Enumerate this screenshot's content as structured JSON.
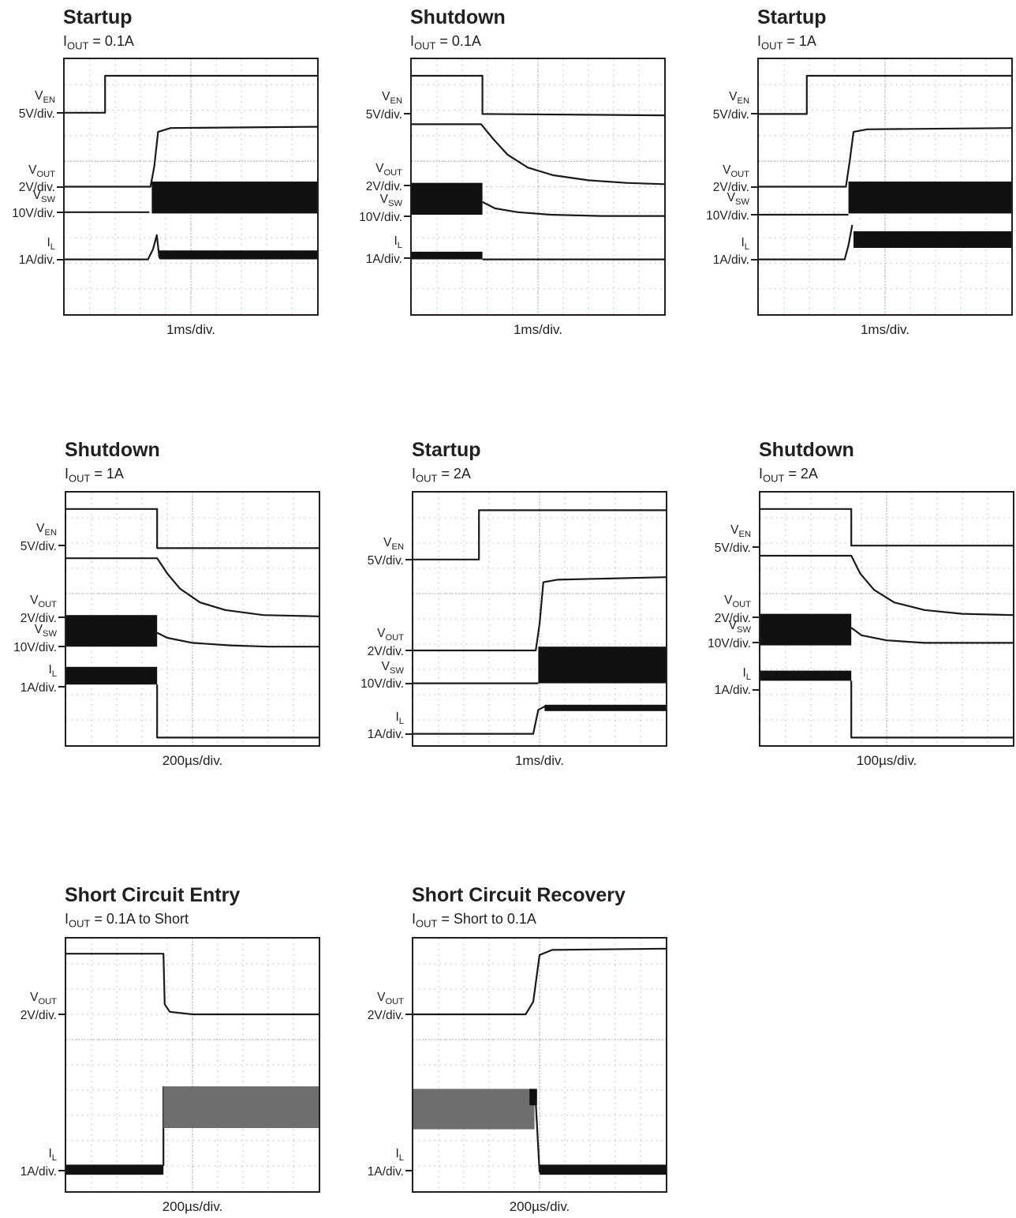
{
  "chart_data": [
    {
      "type": "line",
      "title": "Startup",
      "subtitle": {
        "sym": "I",
        "sub": "OUT",
        "rest": " = 0.1A"
      },
      "timebase": "1ms/div.",
      "channels": [
        {
          "sym": "V",
          "sub": "EN",
          "scale": "5V/div.",
          "level_div": 2.1
        },
        {
          "sym": "V",
          "sub": "OUT",
          "scale": "2V/div.",
          "level_div": 5.0
        },
        {
          "sym": "V",
          "sub": "SW",
          "scale": "10V/div.",
          "level_div": 6.0
        },
        {
          "sym": "I",
          "sub": "L",
          "scale": "1A/div.",
          "level_div": 7.85
        }
      ],
      "series": [
        {
          "kind": "line",
          "pts": [
            [
              0,
              2.1
            ],
            [
              1.6,
              2.1
            ],
            [
              1.6,
              0.65
            ],
            [
              10,
              0.65
            ]
          ]
        },
        {
          "kind": "line",
          "pts": [
            [
              0,
              5.0
            ],
            [
              3.4,
              5.0
            ],
            [
              3.55,
              4.2
            ],
            [
              3.7,
              2.85
            ],
            [
              4.2,
              2.7
            ],
            [
              10,
              2.65
            ]
          ]
        },
        {
          "kind": "line",
          "pts": [
            [
              0,
              6.0
            ],
            [
              3.35,
              6.0
            ]
          ]
        },
        {
          "kind": "band",
          "x0": 3.45,
          "x1": 10,
          "top": 4.8,
          "bot": 6.05
        },
        {
          "kind": "line",
          "pts": [
            [
              0,
              7.85
            ],
            [
              3.3,
              7.85
            ],
            [
              3.5,
              7.45
            ],
            [
              3.65,
              6.9
            ],
            [
              3.75,
              7.8
            ]
          ]
        },
        {
          "kind": "band",
          "x0": 3.75,
          "x1": 10,
          "top": 7.5,
          "bot": 7.85
        }
      ]
    },
    {
      "type": "line",
      "title": "Shutdown",
      "subtitle": {
        "sym": "I",
        "sub": "OUT",
        "rest": " = 0.1A"
      },
      "timebase": "1ms/div.",
      "channels": [
        {
          "sym": "V",
          "sub": "EN",
          "scale": "5V/div.",
          "level_div": 2.15
        },
        {
          "sym": "V",
          "sub": "OUT",
          "scale": "2V/div.",
          "level_div": 4.95
        },
        {
          "sym": "V",
          "sub": "SW",
          "scale": "10V/div.",
          "level_div": 6.15
        },
        {
          "sym": "I",
          "sub": "L",
          "scale": "1A/div.",
          "level_div": 7.8
        }
      ],
      "series": [
        {
          "kind": "line",
          "pts": [
            [
              0,
              0.65
            ],
            [
              2.8,
              0.65
            ],
            [
              2.8,
              2.15
            ],
            [
              10,
              2.2
            ]
          ]
        },
        {
          "kind": "line",
          "pts": [
            [
              0,
              2.55
            ],
            [
              2.75,
              2.55
            ],
            [
              3.2,
              3.1
            ],
            [
              3.8,
              3.75
            ],
            [
              4.6,
              4.25
            ],
            [
              5.6,
              4.55
            ],
            [
              7,
              4.75
            ],
            [
              8.5,
              4.85
            ],
            [
              10,
              4.9
            ]
          ]
        },
        {
          "kind": "band",
          "x0": 0,
          "x1": 2.8,
          "top": 4.85,
          "bot": 6.1
        },
        {
          "kind": "line",
          "pts": [
            [
              2.8,
              5.6
            ],
            [
              3.3,
              5.85
            ],
            [
              4.2,
              6.0
            ],
            [
              5.5,
              6.1
            ],
            [
              7.5,
              6.15
            ],
            [
              10,
              6.15
            ]
          ]
        },
        {
          "kind": "band",
          "x0": 0,
          "x1": 2.8,
          "top": 7.55,
          "bot": 7.85
        },
        {
          "kind": "line",
          "pts": [
            [
              2.8,
              7.85
            ],
            [
              10,
              7.85
            ]
          ]
        }
      ]
    },
    {
      "type": "line",
      "title": "Startup",
      "subtitle": {
        "sym": "I",
        "sub": "OUT",
        "rest": " = 1A"
      },
      "timebase": "1ms/div.",
      "channels": [
        {
          "sym": "V",
          "sub": "EN",
          "scale": "5V/div.",
          "level_div": 2.15
        },
        {
          "sym": "V",
          "sub": "OUT",
          "scale": "2V/div.",
          "level_div": 5.0
        },
        {
          "sym": "V",
          "sub": "SW",
          "scale": "10V/div.",
          "level_div": 6.1
        },
        {
          "sym": "I",
          "sub": "L",
          "scale": "1A/div.",
          "level_div": 7.85
        }
      ],
      "series": [
        {
          "kind": "line",
          "pts": [
            [
              0,
              2.15
            ],
            [
              1.9,
              2.15
            ],
            [
              1.9,
              0.65
            ],
            [
              10,
              0.65
            ]
          ]
        },
        {
          "kind": "line",
          "pts": [
            [
              0,
              5.0
            ],
            [
              3.45,
              5.0
            ],
            [
              3.6,
              4.0
            ],
            [
              3.75,
              2.85
            ],
            [
              4.3,
              2.75
            ],
            [
              10,
              2.7
            ]
          ]
        },
        {
          "kind": "line",
          "pts": [
            [
              0,
              6.1
            ],
            [
              3.55,
              6.1
            ]
          ]
        },
        {
          "kind": "band",
          "x0": 3.55,
          "x1": 10,
          "top": 4.8,
          "bot": 6.05
        },
        {
          "kind": "line",
          "pts": [
            [
              0,
              7.85
            ],
            [
              3.4,
              7.85
            ],
            [
              3.55,
              7.3
            ],
            [
              3.7,
              6.5
            ]
          ]
        },
        {
          "kind": "band",
          "x0": 3.75,
          "x1": 10,
          "top": 6.75,
          "bot": 7.4
        }
      ]
    },
    {
      "type": "line",
      "title": "Shutdown",
      "subtitle": {
        "sym": "I",
        "sub": "OUT",
        "rest": " = 1A"
      },
      "timebase": "200µs/div.",
      "channels": [
        {
          "sym": "V",
          "sub": "EN",
          "scale": "5V/div.",
          "level_div": 2.1
        },
        {
          "sym": "V",
          "sub": "OUT",
          "scale": "2V/div.",
          "level_div": 4.95
        },
        {
          "sym": "V",
          "sub": "SW",
          "scale": "10V/div.",
          "level_div": 6.1
        },
        {
          "sym": "I",
          "sub": "L",
          "scale": "1A/div.",
          "level_div": 7.7
        }
      ],
      "series": [
        {
          "kind": "line",
          "pts": [
            [
              0,
              0.65
            ],
            [
              3.6,
              0.65
            ],
            [
              3.6,
              2.2
            ],
            [
              10,
              2.2
            ]
          ]
        },
        {
          "kind": "line",
          "pts": [
            [
              0,
              2.6
            ],
            [
              3.6,
              2.6
            ],
            [
              4.0,
              3.2
            ],
            [
              4.5,
              3.8
            ],
            [
              5.3,
              4.35
            ],
            [
              6.3,
              4.65
            ],
            [
              7.8,
              4.85
            ],
            [
              10,
              4.9
            ]
          ]
        },
        {
          "kind": "band",
          "x0": 0,
          "x1": 3.6,
          "top": 4.85,
          "bot": 6.1
        },
        {
          "kind": "line",
          "pts": [
            [
              3.6,
              5.55
            ],
            [
              4.0,
              5.75
            ],
            [
              5.0,
              5.95
            ],
            [
              6.5,
              6.05
            ],
            [
              8,
              6.1
            ],
            [
              10,
              6.1
            ]
          ]
        },
        {
          "kind": "band",
          "x0": 0,
          "x1": 3.6,
          "top": 6.9,
          "bot": 7.6
        },
        {
          "kind": "line",
          "pts": [
            [
              3.6,
              7.6
            ],
            [
              3.6,
              9.7
            ],
            [
              10,
              9.7
            ]
          ]
        }
      ]
    },
    {
      "type": "line",
      "title": "Startup",
      "subtitle": {
        "sym": "I",
        "sub": "OUT",
        "rest": " = 2A"
      },
      "timebase": "1ms/div.",
      "channels": [
        {
          "sym": "V",
          "sub": "EN",
          "scale": "5V/div.",
          "level_div": 2.65
        },
        {
          "sym": "V",
          "sub": "OUT",
          "scale": "2V/div.",
          "level_div": 6.25
        },
        {
          "sym": "V",
          "sub": "SW",
          "scale": "10V/div.",
          "level_div": 7.55
        },
        {
          "sym": "I",
          "sub": "L",
          "scale": "1A/div.",
          "level_div": 9.55
        }
      ],
      "series": [
        {
          "kind": "line",
          "pts": [
            [
              0,
              2.65
            ],
            [
              2.6,
              2.65
            ],
            [
              2.6,
              0.7
            ],
            [
              10,
              0.7
            ]
          ]
        },
        {
          "kind": "line",
          "pts": [
            [
              0,
              6.25
            ],
            [
              4.85,
              6.25
            ],
            [
              5.0,
              5.2
            ],
            [
              5.15,
              3.55
            ],
            [
              5.7,
              3.45
            ],
            [
              10,
              3.35
            ]
          ]
        },
        {
          "kind": "line",
          "pts": [
            [
              0,
              7.55
            ],
            [
              4.95,
              7.55
            ]
          ]
        },
        {
          "kind": "band",
          "x0": 4.95,
          "x1": 10,
          "top": 6.1,
          "bot": 7.55
        },
        {
          "kind": "line",
          "pts": [
            [
              0,
              9.55
            ],
            [
              4.75,
              9.55
            ],
            [
              4.95,
              8.6
            ],
            [
              5.25,
              8.45
            ]
          ]
        },
        {
          "kind": "band",
          "x0": 5.2,
          "x1": 10,
          "top": 8.4,
          "bot": 8.65
        }
      ]
    },
    {
      "type": "line",
      "title": "Shutdown",
      "subtitle": {
        "sym": "I",
        "sub": "OUT",
        "rest": " = 2A"
      },
      "timebase": "100µs/div.",
      "channels": [
        {
          "sym": "V",
          "sub": "EN",
          "scale": "5V/div.",
          "level_div": 2.15
        },
        {
          "sym": "V",
          "sub": "OUT",
          "scale": "2V/div.",
          "level_div": 4.95
        },
        {
          "sym": "V",
          "sub": "SW",
          "scale": "10V/div.",
          "level_div": 5.95
        },
        {
          "sym": "I",
          "sub": "L",
          "scale": "1A/div.",
          "level_div": 7.8
        }
      ],
      "series": [
        {
          "kind": "line",
          "pts": [
            [
              0,
              0.65
            ],
            [
              3.6,
              0.65
            ],
            [
              3.6,
              2.1
            ],
            [
              10,
              2.1
            ]
          ]
        },
        {
          "kind": "line",
          "pts": [
            [
              0,
              2.5
            ],
            [
              3.6,
              2.5
            ],
            [
              3.95,
              3.2
            ],
            [
              4.5,
              3.85
            ],
            [
              5.3,
              4.35
            ],
            [
              6.5,
              4.65
            ],
            [
              8,
              4.8
            ],
            [
              10,
              4.85
            ]
          ]
        },
        {
          "kind": "band",
          "x0": 0,
          "x1": 3.6,
          "top": 4.8,
          "bot": 6.05
        },
        {
          "kind": "line",
          "pts": [
            [
              3.6,
              5.35
            ],
            [
              4.0,
              5.65
            ],
            [
              5.0,
              5.85
            ],
            [
              6.5,
              5.95
            ],
            [
              10,
              5.95
            ]
          ]
        },
        {
          "kind": "band",
          "x0": 0,
          "x1": 3.6,
          "top": 7.05,
          "bot": 7.45
        },
        {
          "kind": "line",
          "pts": [
            [
              3.6,
              7.45
            ],
            [
              3.6,
              9.7
            ],
            [
              10,
              9.7
            ]
          ]
        }
      ]
    },
    {
      "type": "line",
      "title": "Short Circuit Entry",
      "subtitle": {
        "sym": "I",
        "sub": "OUT",
        "rest": " = 0.1A to Short"
      },
      "timebase": "200µs/div.",
      "channels": [
        {
          "sym": "V",
          "sub": "OUT",
          "scale": "2V/div.",
          "level_div": 3.0
        },
        {
          "sym": "I",
          "sub": "L",
          "scale": "1A/div.",
          "level_div": 9.2
        }
      ],
      "series": [
        {
          "kind": "line",
          "pts": [
            [
              0,
              0.6
            ],
            [
              3.85,
              0.6
            ],
            [
              3.9,
              2.6
            ],
            [
              4.1,
              2.9
            ],
            [
              5,
              3.0
            ],
            [
              10,
              3.0
            ]
          ]
        },
        {
          "kind": "band",
          "x0": 0,
          "x1": 3.85,
          "top": 8.95,
          "bot": 9.35
        },
        {
          "kind": "line",
          "pts": [
            [
              3.85,
              9.0
            ],
            [
              3.85,
              5.85
            ]
          ]
        },
        {
          "kind": "band",
          "x0": 3.85,
          "x1": 10,
          "top": 5.85,
          "bot": 7.5,
          "light": true
        }
      ]
    },
    {
      "type": "line",
      "title": "Short Circuit Recovery",
      "subtitle": {
        "sym": "I",
        "sub": "OUT",
        "rest": " = Short to 0.1A"
      },
      "timebase": "200µs/div.",
      "channels": [
        {
          "sym": "V",
          "sub": "OUT",
          "scale": "2V/div.",
          "level_div": 3.0
        },
        {
          "sym": "I",
          "sub": "L",
          "scale": "1A/div.",
          "level_div": 9.2
        }
      ],
      "series": [
        {
          "kind": "line",
          "pts": [
            [
              0,
              3.0
            ],
            [
              4.45,
              3.0
            ],
            [
              4.75,
              2.5
            ],
            [
              5.0,
              0.65
            ],
            [
              5.5,
              0.45
            ],
            [
              10,
              0.4
            ]
          ]
        },
        {
          "kind": "band",
          "x0": 0,
          "x1": 4.8,
          "top": 5.95,
          "bot": 7.55,
          "light": true
        },
        {
          "kind": "band",
          "x0": 4.6,
          "x1": 4.9,
          "top": 5.95,
          "bot": 6.6
        },
        {
          "kind": "line",
          "pts": [
            [
              4.85,
              6.5
            ],
            [
              5.0,
              9.25
            ]
          ]
        },
        {
          "kind": "band",
          "x0": 5.0,
          "x1": 10,
          "top": 8.95,
          "bot": 9.35
        }
      ]
    }
  ]
}
